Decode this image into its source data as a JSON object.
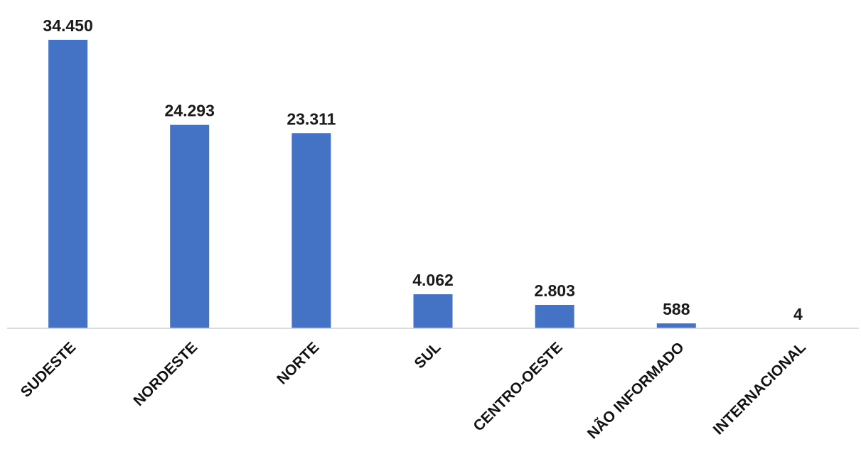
{
  "chart_data": {
    "type": "bar",
    "title": "",
    "xlabel": "",
    "ylabel": "",
    "categories": [
      "SUDESTE",
      "NORDESTE",
      "NORTE",
      "SUL",
      "CENTRO-OESTE",
      "NÃO INFORMADO",
      "INTERNACIONAL"
    ],
    "values": [
      34450,
      24293,
      23311,
      4062,
      2803,
      588,
      4
    ],
    "data_labels": [
      "34.450",
      "24.293",
      "23.311",
      "4.062",
      "2.803",
      "588",
      "4"
    ],
    "ylim": [
      0,
      34450
    ],
    "grid": false,
    "legend": "none",
    "bar_color": "#4472C4"
  }
}
